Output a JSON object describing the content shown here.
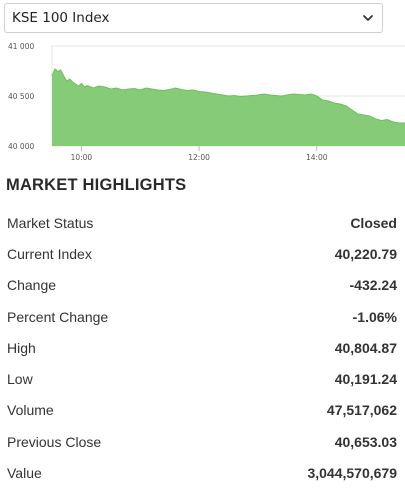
{
  "index_selector": {
    "selected": "KSE 100 Index"
  },
  "chart_data": {
    "type": "area",
    "title": "",
    "xlabel": "",
    "ylabel": "",
    "x_ticks": [
      "10:00",
      "12:00",
      "14:00"
    ],
    "y_ticks": [
      "41 000",
      "40 500",
      "40 000"
    ],
    "x_range_hours": [
      9.5,
      15.5
    ],
    "ylim": [
      40000,
      41000
    ],
    "grid": true,
    "color": "#86cb77",
    "series": [
      {
        "x": [
          9.5,
          9.55,
          9.6,
          9.65,
          9.7,
          9.75,
          9.8,
          9.85,
          9.9,
          9.95,
          10.0,
          10.05,
          10.1,
          10.2,
          10.3,
          10.4,
          10.5,
          10.6,
          10.7,
          10.8,
          10.9,
          11.0,
          11.1,
          11.2,
          11.3,
          11.4,
          11.5,
          11.6,
          11.7,
          11.8,
          11.9,
          12.0,
          12.1,
          12.2,
          12.3,
          12.4,
          12.5,
          12.6,
          12.7,
          12.8,
          12.9,
          13.0,
          13.1,
          13.2,
          13.3,
          13.4,
          13.5,
          13.6,
          13.7,
          13.8,
          13.9,
          14.0,
          14.1,
          14.2,
          14.3,
          14.4,
          14.5,
          14.6,
          14.7,
          14.8,
          14.9,
          15.0,
          15.1,
          15.2,
          15.3,
          15.4,
          15.5
        ],
        "y": [
          40700,
          40770,
          40745,
          40760,
          40700,
          40650,
          40670,
          40640,
          40620,
          40600,
          40625,
          40590,
          40605,
          40580,
          40600,
          40590,
          40570,
          40580,
          40560,
          40570,
          40575,
          40560,
          40580,
          40570,
          40560,
          40555,
          40565,
          40580,
          40565,
          40555,
          40560,
          40545,
          40540,
          40530,
          40520,
          40510,
          40500,
          40505,
          40495,
          40500,
          40505,
          40510,
          40520,
          40510,
          40505,
          40500,
          40510,
          40520,
          40515,
          40510,
          40520,
          40500,
          40460,
          40450,
          40430,
          40420,
          40400,
          40360,
          40320,
          40310,
          40300,
          40270,
          40255,
          40265,
          40240,
          40230,
          40230
        ]
      }
    ]
  },
  "highlights": {
    "title": "MARKET HIGHLIGHTS",
    "rows": [
      {
        "label": "Market Status",
        "value": "Closed"
      },
      {
        "label": "Current Index",
        "value": "40,220.79"
      },
      {
        "label": "Change",
        "value": "-432.24"
      },
      {
        "label": "Percent Change",
        "value": "-1.06%"
      },
      {
        "label": "High",
        "value": "40,804.87"
      },
      {
        "label": "Low",
        "value": "40,191.24"
      },
      {
        "label": "Volume",
        "value": "47,517,062"
      },
      {
        "label": "Previous Close",
        "value": "40,653.03"
      },
      {
        "label": "Value",
        "value": "3,044,570,679"
      }
    ]
  }
}
